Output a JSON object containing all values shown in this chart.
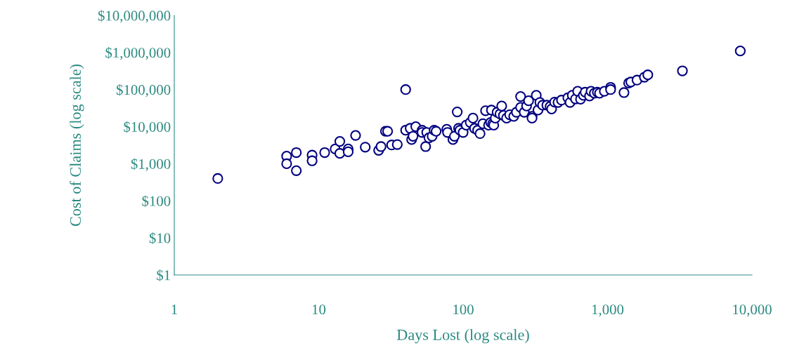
{
  "chart_data": {
    "type": "scatter",
    "xlabel": "Days Lost (log scale)",
    "ylabel": "Cost of Claims (log scale)",
    "log": "xy",
    "grid": false,
    "marker": "circle",
    "xlim": [
      1,
      10000
    ],
    "ylim": [
      1,
      10000000
    ],
    "xticks": [
      1,
      10,
      100,
      {
        "value": 1000,
        "label": "1,000"
      },
      {
        "value": 10000,
        "label": "10,000"
      }
    ],
    "yticks": [
      {
        "value": 1,
        "label": "$1"
      },
      {
        "value": 10,
        "label": "$10"
      },
      {
        "value": 100,
        "label": "$100"
      },
      {
        "value": 1000,
        "label": "$1,000"
      },
      {
        "value": 10000,
        "label": "$10,000"
      },
      {
        "value": 100000,
        "label": "$100,000"
      },
      {
        "value": 1000000,
        "label": "$1,000,000"
      },
      {
        "value": 10000000,
        "label": "$10,000,000"
      }
    ],
    "series": [
      {
        "color": "#000080",
        "x": [
          2,
          6,
          6,
          7,
          7,
          9,
          9,
          11,
          13,
          14,
          14,
          16,
          16,
          18,
          21,
          26,
          27,
          29,
          30,
          32,
          35,
          40,
          40,
          43,
          44,
          45,
          47,
          52,
          52,
          55,
          56,
          58,
          61,
          63,
          65,
          77,
          78,
          85,
          87,
          91,
          93,
          95,
          100,
          105,
          112,
          117,
          120,
          126,
          131,
          137,
          143,
          150,
          155,
          157,
          160,
          163,
          167,
          172,
          180,
          185,
          190,
          200,
          210,
          224,
          234,
          250,
          250,
          265,
          275,
          284,
          300,
          300,
          321,
          330,
          340,
          355,
          380,
          400,
          410,
          430,
          454,
          480,
          531,
          550,
          570,
          600,
          621,
          650,
          680,
          700,
          750,
          769,
          810,
          850,
          880,
          950,
          1050,
          1050,
          1300,
          1400,
          1450,
          1600,
          1800,
          1900,
          3300,
          8300
        ],
        "values": [
          400,
          1600,
          1000,
          2000,
          650,
          1700,
          1200,
          2000,
          2500,
          4000,
          1900,
          2500,
          2100,
          5800,
          2800,
          2300,
          2900,
          7500,
          7500,
          3200,
          3300,
          100000,
          8000,
          9000,
          4500,
          5500,
          10000,
          8000,
          7000,
          2900,
          7000,
          5000,
          5500,
          8000,
          7500,
          8500,
          7000,
          4500,
          5500,
          25000,
          9000,
          8000,
          7000,
          11000,
          13000,
          17000,
          9000,
          8000,
          6500,
          12000,
          27000,
          11000,
          13000,
          28000,
          12000,
          11000,
          17000,
          24500,
          22000,
          36000,
          20000,
          17000,
          21000,
          19000,
          24500,
          33000,
          65000,
          24500,
          36000,
          50000,
          19000,
          17000,
          70000,
          28000,
          45000,
          38000,
          38000,
          35000,
          30000,
          46000,
          45000,
          52000,
          60000,
          45000,
          70000,
          56000,
          90000,
          55000,
          70000,
          85000,
          67000,
          90000,
          80000,
          85000,
          80000,
          90000,
          115000,
          100000,
          83000,
          150000,
          160000,
          180000,
          216000,
          250000,
          320000,
          1100000
        ]
      }
    ]
  }
}
